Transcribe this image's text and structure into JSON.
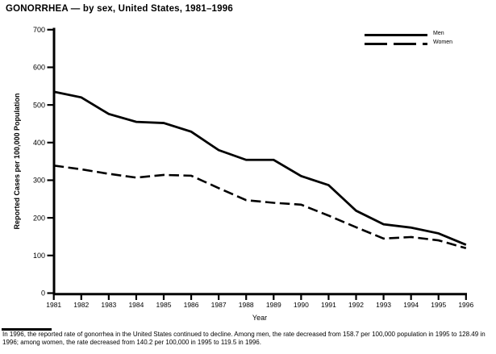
{
  "chart_data": {
    "type": "line",
    "title": "GONORRHEA — by sex, United States, 1981–1996",
    "xlabel": "Year",
    "ylabel": "Reported Cases per 100,000 Population",
    "x": [
      1981,
      1982,
      1983,
      1984,
      1985,
      1986,
      1987,
      1988,
      1989,
      1990,
      1991,
      1992,
      1993,
      1994,
      1995,
      1996
    ],
    "ylim": [
      0,
      700
    ],
    "y_ticks": [
      0,
      100,
      200,
      300,
      400,
      500,
      600,
      700
    ],
    "grid": false,
    "legend_position": "top-right",
    "series": [
      {
        "name": "Men",
        "line_style": "solid",
        "color": "#000000",
        "values": [
          535,
          520,
          476,
          455,
          452,
          429,
          380,
          354,
          354,
          311,
          287,
          219,
          183,
          174,
          158.7,
          128.49
        ]
      },
      {
        "name": "Women",
        "line_style": "dashed",
        "color": "#000000",
        "values": [
          339,
          329,
          317,
          307,
          314,
          312,
          279,
          247,
          240,
          235,
          206,
          175,
          145,
          149,
          140.2,
          119.5
        ]
      }
    ]
  },
  "footnote": {
    "text": "In 1996, the reported rate of gonorrhea in the United States continued to decline. Among men, the rate decreased from 158.7 per 100,000 population in 1995 to 128.49 in 1996; among women, the rate decreased from 140.2 per 100,000 in 1995 to 119.5 in 1996."
  },
  "colors": {
    "ink": "#000000",
    "background": "#ffffff"
  }
}
